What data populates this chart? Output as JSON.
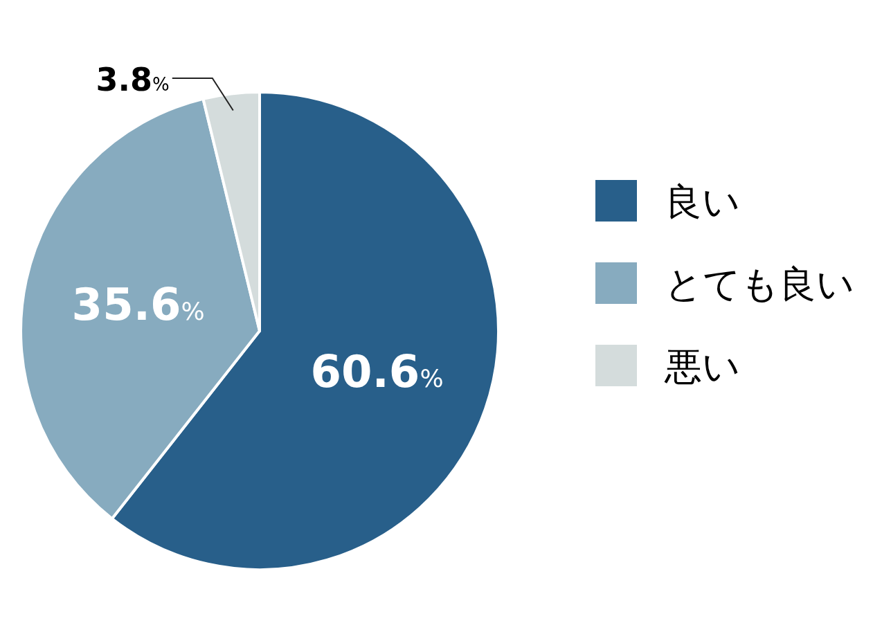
{
  "chart_data": {
    "type": "pie",
    "categories": [
      "良い",
      "とても良い",
      "悪い"
    ],
    "values": [
      60.6,
      35.6,
      3.8
    ],
    "colors": [
      "#285f8a",
      "#87abbf",
      "#d4dcdc"
    ],
    "value_labels": [
      "60.6%",
      "35.6%",
      "3.8%"
    ],
    "legend": "right"
  }
}
